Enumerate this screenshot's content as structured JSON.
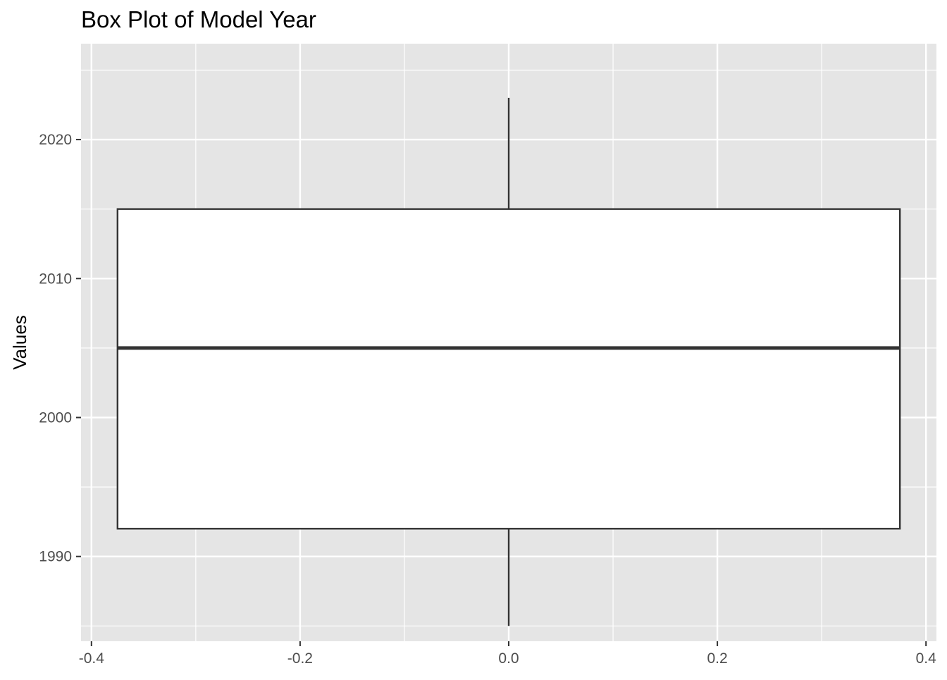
{
  "chart_data": {
    "type": "boxplot",
    "title": "Box Plot of Model Year",
    "xlabel": "",
    "ylabel": "Values",
    "xlim": [
      -0.41,
      0.41
    ],
    "ylim": [
      1983.9,
      2026.9
    ],
    "x_ticks": [
      -0.4,
      -0.2,
      0.0,
      0.2,
      0.4
    ],
    "x_tick_labels": [
      "-0.4",
      "-0.2",
      "0.0",
      "0.2",
      "0.4"
    ],
    "y_ticks": [
      1990,
      2000,
      2010,
      2020
    ],
    "y_tick_labels": [
      "1990",
      "2000",
      "2010",
      "2020"
    ],
    "grid": true,
    "box": {
      "x": 0.0,
      "x_min": -0.375,
      "x_max": 0.375,
      "whisker_low": 1985,
      "q1": 1992,
      "median": 2005,
      "q3": 2015,
      "whisker_high": 2023
    },
    "colors": {
      "panel_background": "#e5e5e5",
      "grid": "#ffffff",
      "box_fill": "#ffffff",
      "box_stroke": "#333333",
      "tick_label": "#4d4d4d"
    }
  }
}
